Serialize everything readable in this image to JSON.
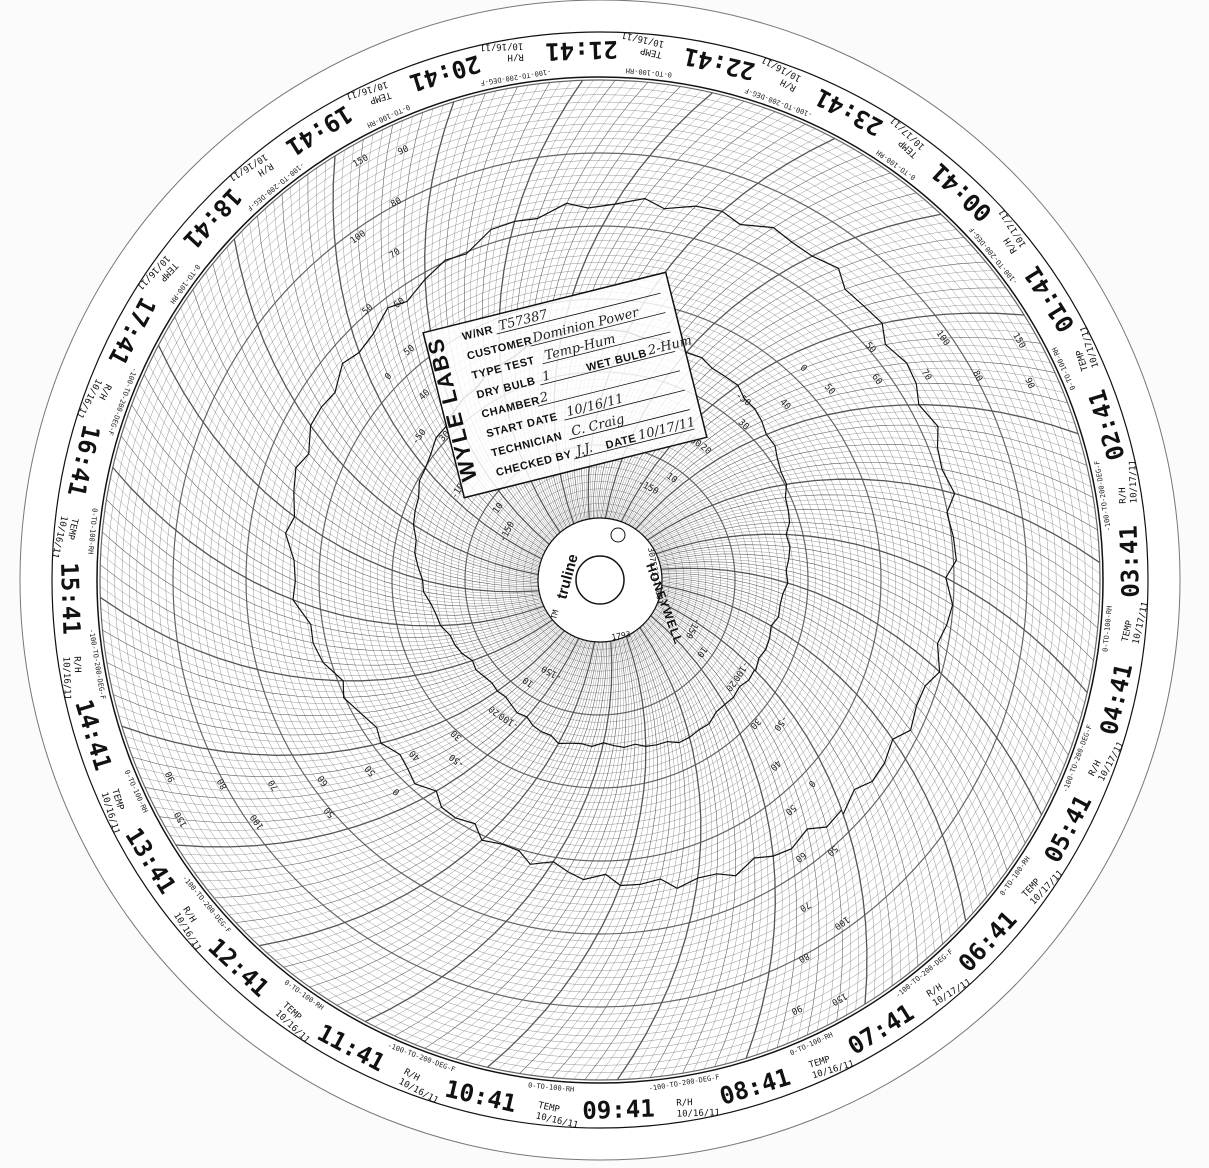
{
  "chart_data": {
    "type": "circular-recorder-chart",
    "hours": [
      {
        "label": "07:41",
        "date": "10/17/11"
      },
      {
        "label": "08:41",
        "date": "10/16/11"
      },
      {
        "label": "09:41",
        "date": "10/16/11"
      },
      {
        "label": "10:41",
        "date": "10/16/11"
      },
      {
        "label": "11:41",
        "date": "10/16/11"
      },
      {
        "label": "12:41",
        "date": "10/16/11"
      },
      {
        "label": "13:41",
        "date": "10/16/11"
      },
      {
        "label": "14:41",
        "date": "10/16/11"
      },
      {
        "label": "15:41",
        "date": "10/16/11"
      },
      {
        "label": "16:41",
        "date": "10/16/11"
      },
      {
        "label": "17:41",
        "date": "10/16/11"
      },
      {
        "label": "18:41",
        "date": "10/16/11"
      },
      {
        "label": "19:41",
        "date": "10/16/11"
      },
      {
        "label": "20:41",
        "date": "10/16/11"
      },
      {
        "label": "21:41",
        "date": "10/16/11"
      },
      {
        "label": "22:41",
        "date": "10/16/11"
      },
      {
        "label": "23:41",
        "date": "10/16/11"
      },
      {
        "label": "00:41",
        "date": "10/17/11"
      },
      {
        "label": "01:41",
        "date": "10/17/11"
      },
      {
        "label": "02:41",
        "date": "10/17/11"
      },
      {
        "label": "03:41",
        "date": "10/17/11"
      },
      {
        "label": "04:41",
        "date": "10/17/11"
      },
      {
        "label": "05:41",
        "date": "10/17/11"
      },
      {
        "label": "06:41",
        "date": "10/17/11"
      }
    ],
    "rh_unit_label": "R/H",
    "temp_unit_label": "TEMP",
    "rh_scale_label": "0-TO-100-RH",
    "temp_scale_label": "-100-TO-200-DEG-F",
    "temp_ring_values": [
      "-150",
      "-100",
      "-50",
      "0",
      "50",
      "100",
      "150"
    ],
    "rh_ring_values": [
      "90",
      "80",
      "70",
      "60",
      "50",
      "40",
      "30",
      "20",
      "10"
    ],
    "temp_trace_f": [
      -20,
      -22,
      -18,
      -25,
      -30,
      -28,
      -35,
      -40,
      -38,
      -30,
      -20,
      -10,
      0,
      10,
      20,
      30,
      28,
      25,
      20,
      10,
      0,
      -10,
      -15,
      -20
    ],
    "rh_trace_pct": [
      62,
      60,
      58,
      55,
      52,
      50,
      48,
      47,
      50,
      55,
      58,
      60,
      62,
      65,
      70,
      72,
      74,
      75,
      72,
      70,
      68,
      66,
      65,
      63
    ]
  },
  "stamp": {
    "brand": "WYLE LABS",
    "fields": [
      {
        "label": "W/NR",
        "value": "T57387"
      },
      {
        "label": "CUSTOMER",
        "value": "Dominion Power"
      },
      {
        "label": "TYPE TEST",
        "value": "Temp-Hum"
      },
      {
        "label": "DRY BULB",
        "value": "1",
        "label2": "WET BULB",
        "value2": "2-Hum"
      },
      {
        "label": "CHAMBER",
        "value": "2"
      },
      {
        "label": "START DATE",
        "value": "10/16/11"
      },
      {
        "label": "TECHNICIAN",
        "value": "C. Craig"
      },
      {
        "label": "CHECKED BY",
        "value": "J.J.",
        "label2": "DATE",
        "value2": "10/17/11"
      }
    ]
  },
  "hub": {
    "brand": "truline",
    "tm": "TM",
    "part_no": "30753317-001",
    "manufacturer": "HONEYWELL",
    "model": "1793"
  },
  "colors": {
    "ink": "#111111",
    "paper": "#fbfbfb",
    "grid": "#555555"
  }
}
